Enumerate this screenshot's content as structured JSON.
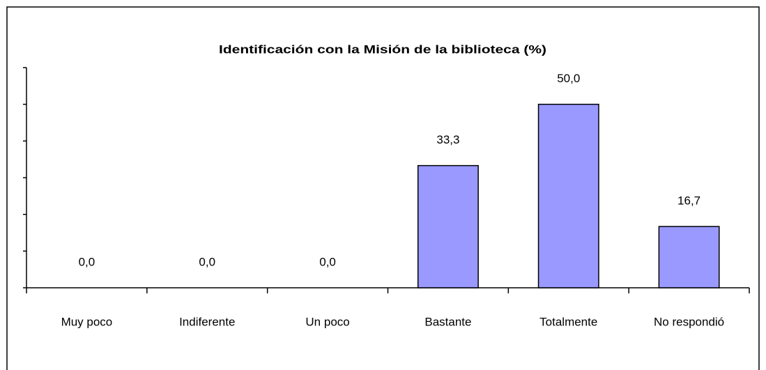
{
  "chart_data": {
    "type": "bar",
    "title": "Identificación con la Misión de la biblioteca (%)",
    "categories": [
      "Muy poco",
      "Indiferente",
      "Un poco",
      "Bastante",
      "Totalmente",
      "No respondió"
    ],
    "values": [
      0,
      0,
      0,
      33.3,
      50,
      16.7
    ],
    "value_labels": [
      "0,0",
      "0,0",
      "0,0",
      "33,3",
      "50,0",
      "16,7"
    ],
    "color": "#9999ff",
    "ylim": [
      0,
      60
    ],
    "yticks": [
      0,
      10,
      20,
      30,
      40,
      50,
      60
    ]
  }
}
